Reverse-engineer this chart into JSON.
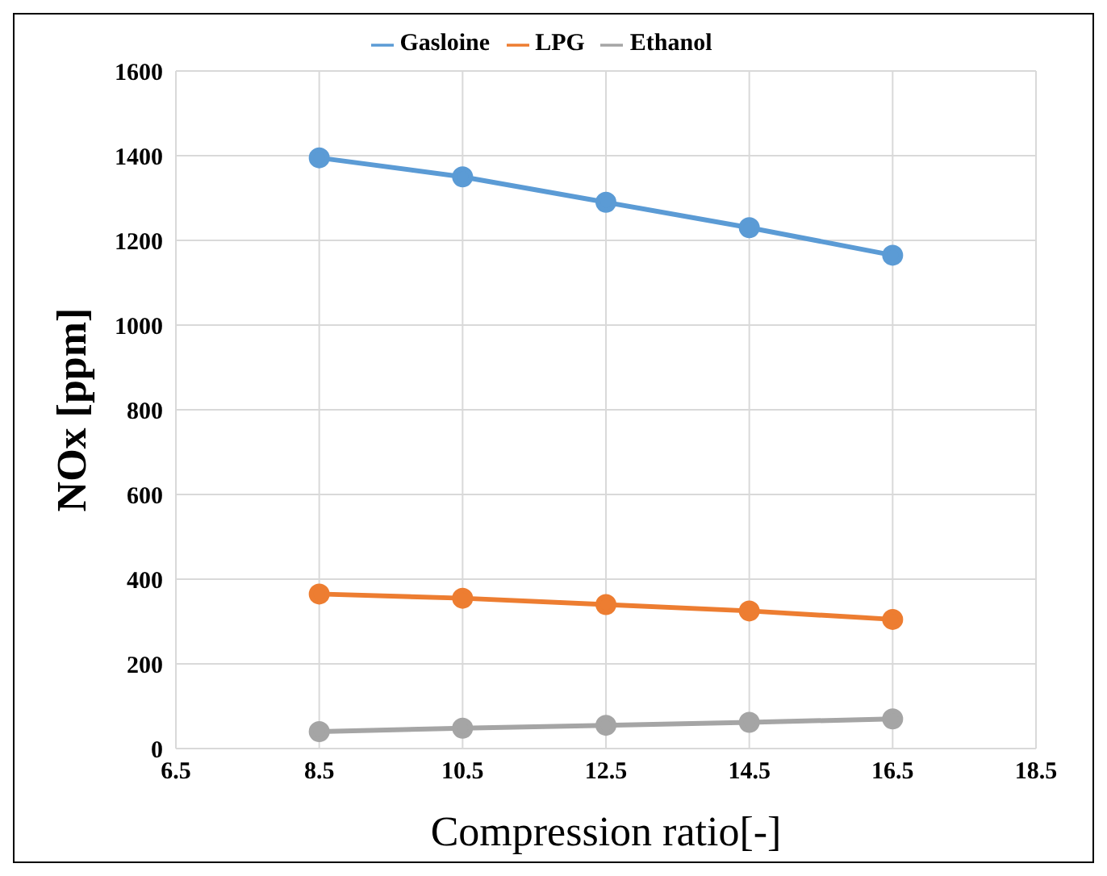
{
  "chart_data": {
    "type": "line",
    "xlabel": "Compression ratio[-]",
    "ylabel": "NOx [ppm]",
    "x": [
      8.5,
      10.5,
      12.5,
      14.5,
      16.5
    ],
    "series": [
      {
        "name": "Gasloine",
        "color": "#5b9bd5",
        "values": [
          1395,
          1350,
          1290,
          1230,
          1165
        ]
      },
      {
        "name": "LPG",
        "color": "#ed7d31",
        "values": [
          365,
          355,
          340,
          325,
          305
        ]
      },
      {
        "name": "Ethanol",
        "color": "#a5a5a5",
        "values": [
          40,
          48,
          55,
          62,
          70
        ]
      }
    ],
    "xlim": [
      6.5,
      18.5
    ],
    "xticks": [
      6.5,
      8.5,
      10.5,
      12.5,
      14.5,
      16.5,
      18.5
    ],
    "ylim": [
      0,
      1600
    ],
    "yticks": [
      0,
      200,
      400,
      600,
      800,
      1000,
      1200,
      1400,
      1600
    ],
    "grid": true,
    "legend": "top",
    "marker": "circle",
    "line_style": "solid"
  }
}
